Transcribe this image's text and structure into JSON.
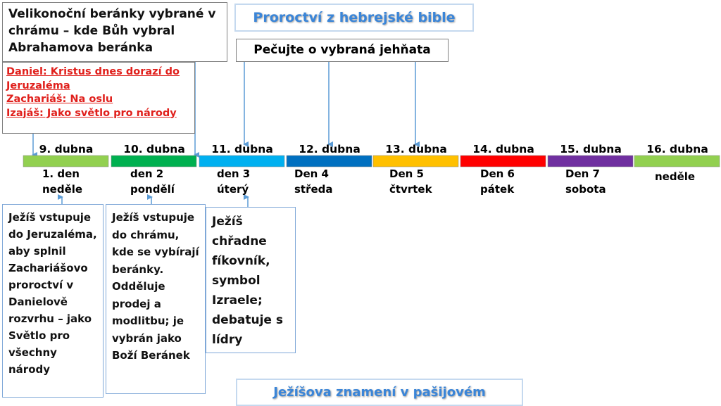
{
  "header_box": {
    "lines": [
      "Velikonoční beránky vybrané v",
      "chrámu – kde Bůh vybral",
      "Abrahamova beránka"
    ]
  },
  "title": "Proroctví z hebrejské bible",
  "care_box": "Pečujte o vybraná jehňata",
  "prophecy_box": {
    "lines": [
      "Daniel: Kristus dnes dorazí do",
      "Jeruzaléma",
      "Zachariáš: Na oslu",
      "Izajáš: Jako světlo pro národy"
    ]
  },
  "days": [
    {
      "date": "9. dubna",
      "color": "#92d050",
      "label": [
        "1. den",
        "neděle"
      ]
    },
    {
      "date": "10. dubna",
      "color": "#00b050",
      "label": [
        "den 2",
        "pondělí"
      ]
    },
    {
      "date": "11. dubna",
      "color": "#00b0f0",
      "label": [
        "den 3",
        "úterý"
      ]
    },
    {
      "date": "12. dubna",
      "color": "#0070c0",
      "label": [
        "Den 4",
        "středa"
      ]
    },
    {
      "date": "13. dubna",
      "color": "#ffc000",
      "label": [
        "Den 5",
        "čtvrtek"
      ]
    },
    {
      "date": "14. dubna",
      "color": "#ff0000",
      "label": [
        "Den 6",
        "pátek"
      ]
    },
    {
      "date": "15. dubna",
      "color": "#7030a0",
      "label": [
        "Den 7",
        "sobota"
      ]
    },
    {
      "date": "16. dubna",
      "color": "#92d050",
      "label": [
        "neděle"
      ]
    }
  ],
  "notes": [
    {
      "lines": [
        "Ježíš vstupuje",
        "do Jeruzaléma,",
        "aby splnil",
        "Zachariášovo",
        "proroctví v",
        "Danielově",
        "rozvrhu – jako",
        "Světlo pro",
        "všechny",
        "národy"
      ]
    },
    {
      "lines": [
        "Ježíš vstupuje",
        "do chrámu,",
        "kde se vybírají",
        "beránky.",
        "Odděluje",
        "prodej a",
        "modlitbu; je",
        "vybrán jako",
        "Boží Beránek"
      ]
    },
    {
      "lines": [
        "Ježíš",
        "chřadne",
        "fíkovník,",
        "symbol",
        "Izraele;",
        "debatuje s",
        "lídry"
      ]
    }
  ],
  "footer_title": "Ježíšova znamení v pašijovém"
}
